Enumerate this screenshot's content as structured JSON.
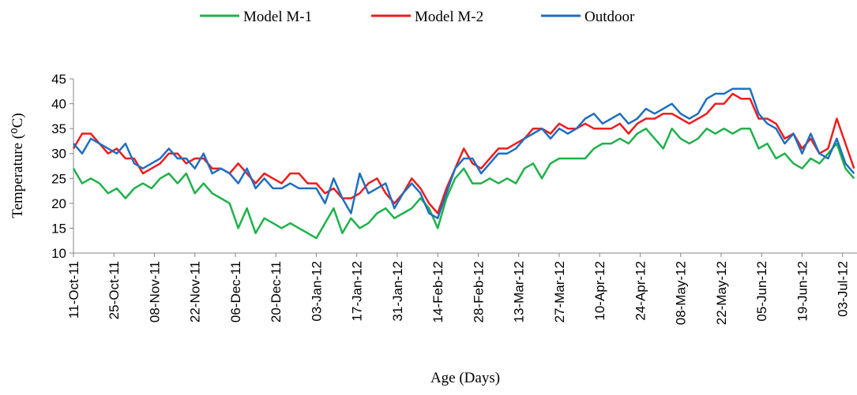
{
  "chart_data": {
    "type": "line",
    "x_label": "Age (Days)",
    "y_label": "Temperature (⁰C)",
    "x": [
      "2011-10-11",
      "2011-10-14",
      "2011-10-17",
      "2011-10-20",
      "2011-10-23",
      "2011-10-26",
      "2011-10-29",
      "2011-11-01",
      "2011-11-04",
      "2011-11-07",
      "2011-11-10",
      "2011-11-13",
      "2011-11-16",
      "2011-11-19",
      "2011-11-22",
      "2011-11-25",
      "2011-11-28",
      "2011-12-01",
      "2011-12-04",
      "2011-12-07",
      "2011-12-10",
      "2011-12-13",
      "2011-12-16",
      "2011-12-19",
      "2011-12-22",
      "2011-12-25",
      "2011-12-28",
      "2011-12-31",
      "2012-01-03",
      "2012-01-06",
      "2012-01-09",
      "2012-01-12",
      "2012-01-15",
      "2012-01-18",
      "2012-01-21",
      "2012-01-24",
      "2012-01-27",
      "2012-01-30",
      "2012-02-02",
      "2012-02-05",
      "2012-02-08",
      "2012-02-11",
      "2012-02-14",
      "2012-02-17",
      "2012-02-20",
      "2012-02-23",
      "2012-02-26",
      "2012-02-29",
      "2012-03-03",
      "2012-03-06",
      "2012-03-09",
      "2012-03-12",
      "2012-03-15",
      "2012-03-18",
      "2012-03-21",
      "2012-03-24",
      "2012-03-27",
      "2012-03-30",
      "2012-04-02",
      "2012-04-05",
      "2012-04-08",
      "2012-04-11",
      "2012-04-14",
      "2012-04-17",
      "2012-04-20",
      "2012-04-23",
      "2012-04-26",
      "2012-04-29",
      "2012-05-02",
      "2012-05-05",
      "2012-05-08",
      "2012-05-11",
      "2012-05-14",
      "2012-05-17",
      "2012-05-20",
      "2012-05-23",
      "2012-05-26",
      "2012-05-29",
      "2012-06-01",
      "2012-06-04",
      "2012-06-07",
      "2012-06-10",
      "2012-06-13",
      "2012-06-16",
      "2012-06-19",
      "2012-06-22",
      "2012-06-25",
      "2012-06-28",
      "2012-07-01",
      "2012-07-04",
      "2012-07-07"
    ],
    "series": [
      {
        "name": "Model M-1",
        "color": "#1fb14a",
        "values": [
          27,
          24,
          25,
          24,
          22,
          23,
          21,
          23,
          24,
          23,
          25,
          26,
          24,
          26,
          22,
          24,
          22,
          21,
          20,
          15,
          19,
          14,
          17,
          16,
          15,
          16,
          15,
          14,
          13,
          16,
          19,
          14,
          17,
          15,
          16,
          18,
          19,
          17,
          18,
          19,
          21,
          19,
          15,
          21,
          25,
          27,
          24,
          24,
          25,
          24,
          25,
          24,
          27,
          28,
          25,
          28,
          29,
          29,
          29,
          29,
          31,
          32,
          32,
          33,
          32,
          34,
          35,
          33,
          31,
          35,
          33,
          32,
          33,
          35,
          34,
          35,
          34,
          35,
          35,
          31,
          32,
          29,
          30,
          28,
          27,
          29,
          28,
          30,
          32,
          27,
          25
        ]
      },
      {
        "name": "Model M-2",
        "color": "#ee1c1c",
        "values": [
          31,
          34,
          34,
          32,
          30,
          31,
          29,
          29,
          26,
          27,
          28,
          30,
          30,
          28,
          29,
          29,
          27,
          27,
          26,
          28,
          26,
          24,
          26,
          25,
          24,
          26,
          26,
          24,
          24,
          22,
          23,
          21,
          21,
          22,
          24,
          25,
          22,
          20,
          22,
          25,
          23,
          20,
          18,
          23,
          27,
          31,
          28,
          27,
          29,
          31,
          31,
          32,
          33,
          35,
          35,
          34,
          36,
          35,
          35,
          36,
          35,
          35,
          35,
          36,
          34,
          36,
          37,
          37,
          38,
          38,
          37,
          36,
          37,
          38,
          40,
          40,
          42,
          41,
          41,
          37,
          37,
          36,
          33,
          34,
          31,
          33,
          30,
          31,
          37,
          32,
          27
        ]
      },
      {
        "name": "Outdoor",
        "color": "#1f6fc0",
        "values": [
          32,
          30,
          33,
          32,
          31,
          30,
          32,
          28,
          27,
          28,
          29,
          31,
          29,
          29,
          27,
          30,
          26,
          27,
          26,
          24,
          27,
          23,
          25,
          23,
          23,
          24,
          23,
          23,
          23,
          20,
          25,
          21,
          18,
          26,
          22,
          23,
          24,
          19,
          22,
          24,
          22,
          18,
          17,
          22,
          27,
          29,
          29,
          26,
          28,
          30,
          30,
          31,
          33,
          34,
          35,
          33,
          35,
          34,
          35,
          37,
          38,
          36,
          37,
          38,
          36,
          37,
          39,
          38,
          39,
          40,
          38,
          37,
          38,
          41,
          42,
          42,
          43,
          43,
          43,
          38,
          36,
          35,
          32,
          34,
          30,
          34,
          30,
          29,
          33,
          28,
          26
        ]
      }
    ],
    "xlim": [
      "2011-10-11",
      "2012-07-08"
    ],
    "xticks": [
      {
        "value": "2011-10-11",
        "label": "11-Oct-11"
      },
      {
        "value": "2011-10-25",
        "label": "25-Oct-11"
      },
      {
        "value": "2011-11-08",
        "label": "08-Nov-11"
      },
      {
        "value": "2011-11-22",
        "label": "22-Nov-11"
      },
      {
        "value": "2011-12-06",
        "label": "06-Dec-11"
      },
      {
        "value": "2011-12-20",
        "label": "20-Dec-11"
      },
      {
        "value": "2012-01-03",
        "label": "03-Jan-12"
      },
      {
        "value": "2012-01-17",
        "label": "17-Jan-12"
      },
      {
        "value": "2012-01-31",
        "label": "31-Jan-12"
      },
      {
        "value": "2012-02-14",
        "label": "14-Feb-12"
      },
      {
        "value": "2012-02-28",
        "label": "28-Feb-12"
      },
      {
        "value": "2012-03-13",
        "label": "13-Mar-12"
      },
      {
        "value": "2012-03-27",
        "label": "27-Mar-12"
      },
      {
        "value": "2012-04-10",
        "label": "10-Apr-12"
      },
      {
        "value": "2012-04-24",
        "label": "24-Apr-12"
      },
      {
        "value": "2012-05-08",
        "label": "08-May-12"
      },
      {
        "value": "2012-05-22",
        "label": "22-May-12"
      },
      {
        "value": "2012-06-05",
        "label": "05-Jun-12"
      },
      {
        "value": "2012-06-19",
        "label": "19-Jun-12"
      },
      {
        "value": "2012-07-03",
        "label": "03-Jul-12"
      }
    ],
    "ylim": [
      10,
      45
    ],
    "yticks": [
      10,
      15,
      20,
      25,
      30,
      35,
      40,
      45
    ],
    "legend": "top"
  }
}
